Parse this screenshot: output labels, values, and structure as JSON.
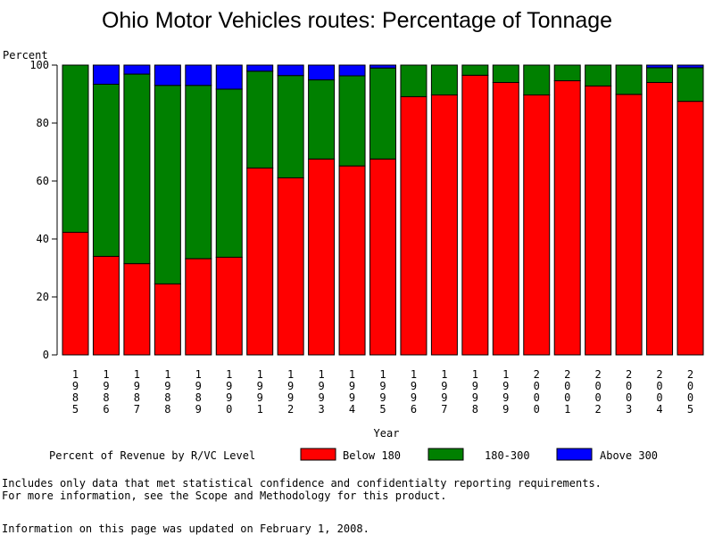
{
  "chart_data": {
    "type": "bar",
    "stacked": true,
    "title": "Ohio Motor Vehicles routes: Percentage of Tonnage",
    "ylabel": "Percent",
    "xlabel": "Year",
    "ylim": [
      0,
      100
    ],
    "yticks": [
      0,
      20,
      40,
      60,
      80,
      100
    ],
    "grid": false,
    "categories": [
      "1985",
      "1986",
      "1987",
      "1988",
      "1989",
      "1990",
      "1991",
      "1992",
      "1993",
      "1994",
      "1995",
      "1996",
      "1997",
      "1998",
      "1999",
      "2000",
      "2001",
      "2002",
      "2003",
      "2004",
      "2005"
    ],
    "series": [
      {
        "name": "Below 180",
        "color": "#ff0000",
        "values": [
          42.3,
          34.0,
          31.5,
          24.5,
          33.2,
          33.7,
          64.5,
          61.1,
          67.6,
          65.2,
          67.6,
          89.1,
          89.7,
          96.5,
          94.0,
          89.7,
          94.6,
          92.8,
          89.9,
          94.0,
          87.5
        ]
      },
      {
        "name": "180-300",
        "color": "#008000",
        "values": [
          57.7,
          59.4,
          65.4,
          68.5,
          59.8,
          58.0,
          33.4,
          35.3,
          27.3,
          31.1,
          31.4,
          10.9,
          10.3,
          3.5,
          6.0,
          10.3,
          5.4,
          7.2,
          10.1,
          5.1,
          11.6
        ]
      },
      {
        "name": "Above 300",
        "color": "#0000ff",
        "values": [
          0.0,
          6.6,
          3.1,
          7.0,
          7.0,
          8.3,
          2.1,
          3.6,
          5.1,
          3.7,
          1.0,
          0.0,
          0.0,
          0.0,
          0.0,
          0.0,
          0.0,
          0.0,
          0.0,
          0.9,
          0.9
        ]
      }
    ],
    "legend": {
      "title": "Percent of Revenue by R/VC Level",
      "placement": "bottom"
    }
  },
  "footer": {
    "note1": "Includes only data that met statistical confidence and confidentialty reporting requirements.",
    "note2": "For more information, see the Scope and Methodology for this product.",
    "updated": "Information on this page was updated on February 1, 2008."
  }
}
